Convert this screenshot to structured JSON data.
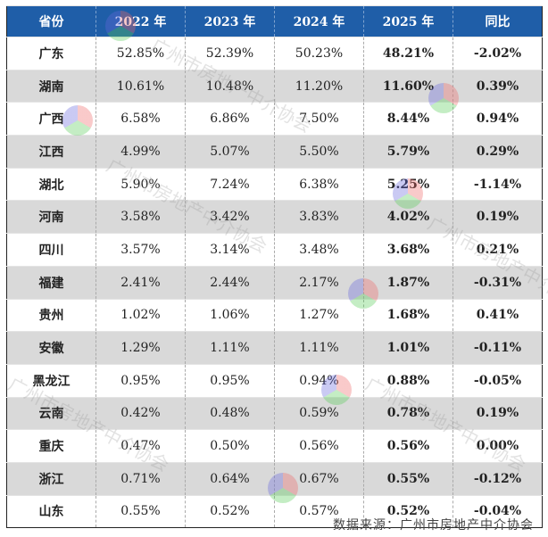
{
  "chart_data": {
    "type": "table",
    "columns": [
      "省份",
      "2022 年",
      "2023 年",
      "2024 年",
      "2025 年",
      "同比"
    ],
    "rows": [
      [
        "广东",
        "52.85%",
        "52.39%",
        "50.23%",
        "48.21%",
        "-2.02%"
      ],
      [
        "湖南",
        "10.61%",
        "10.48%",
        "11.20%",
        "11.60%",
        "0.39%"
      ],
      [
        "广西",
        "6.58%",
        "6.86%",
        "7.50%",
        "8.44%",
        "0.94%"
      ],
      [
        "江西",
        "4.99%",
        "5.07%",
        "5.50%",
        "5.79%",
        "0.29%"
      ],
      [
        "湖北",
        "5.90%",
        "7.24%",
        "6.38%",
        "5.25%",
        "-1.14%"
      ],
      [
        "河南",
        "3.58%",
        "3.42%",
        "3.83%",
        "4.02%",
        "0.19%"
      ],
      [
        "四川",
        "3.57%",
        "3.14%",
        "3.48%",
        "3.68%",
        "0.21%"
      ],
      [
        "福建",
        "2.41%",
        "2.44%",
        "2.17%",
        "1.87%",
        "-0.31%"
      ],
      [
        "贵州",
        "1.02%",
        "1.06%",
        "1.27%",
        "1.68%",
        "0.41%"
      ],
      [
        "安徽",
        "1.29%",
        "1.11%",
        "1.11%",
        "1.01%",
        "-0.11%"
      ],
      [
        "黑龙江",
        "0.95%",
        "0.95%",
        "0.94%",
        "0.88%",
        "-0.05%"
      ],
      [
        "云南",
        "0.42%",
        "0.48%",
        "0.59%",
        "0.78%",
        "0.19%"
      ],
      [
        "重庆",
        "0.47%",
        "0.50%",
        "0.56%",
        "0.56%",
        "0.00%"
      ],
      [
        "浙江",
        "0.71%",
        "0.64%",
        "0.67%",
        "0.55%",
        "-0.12%"
      ],
      [
        "山东",
        "0.55%",
        "0.52%",
        "0.57%",
        "0.52%",
        "-0.04%"
      ]
    ],
    "header_color": "#1f5ea8",
    "stripe_color": "#d9d9d9"
  },
  "source": "数据来源：广州市房地产中介协会",
  "watermark": "广州市房地产中介协会"
}
